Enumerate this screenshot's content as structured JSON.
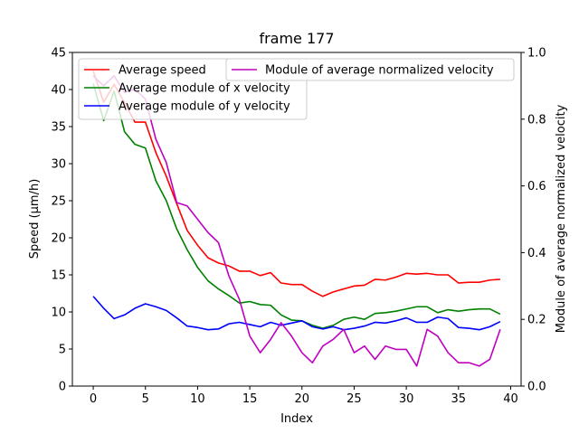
{
  "chart_data": {
    "type": "line",
    "title": "frame 177",
    "xlabel": "Index",
    "ylabel_left": "Speed (μm/h)",
    "ylabel_right": "Module of average normalized velocity",
    "xlim": [
      -2,
      41
    ],
    "ylim_left": [
      0,
      45
    ],
    "ylim_right": [
      0,
      1.0
    ],
    "xticks": [
      0,
      5,
      10,
      15,
      20,
      25,
      30,
      35,
      40
    ],
    "yticks_left": [
      0,
      5,
      10,
      15,
      20,
      25,
      30,
      35,
      40,
      45
    ],
    "yticks_right": [
      0.0,
      0.2,
      0.4,
      0.6,
      0.8,
      1.0
    ],
    "yticks_right_labels": [
      "0.0",
      "0.2",
      "0.4",
      "0.6",
      "0.8",
      "1.0"
    ],
    "grid": false,
    "x": [
      0,
      1,
      2,
      3,
      4,
      5,
      6,
      7,
      8,
      9,
      10,
      11,
      12,
      13,
      14,
      15,
      16,
      17,
      18,
      19,
      20,
      21,
      22,
      23,
      24,
      25,
      26,
      27,
      28,
      29,
      30,
      31,
      32,
      33,
      34,
      35,
      36,
      37,
      38,
      39
    ],
    "series": [
      {
        "name": "Average speed",
        "axis": "left",
        "color": "#ff0000",
        "values": [
          42.5,
          38.3,
          40.7,
          38.2,
          35.6,
          35.6,
          31.5,
          28.3,
          24.6,
          21.0,
          19.0,
          17.3,
          16.6,
          16.2,
          15.5,
          15.5,
          14.9,
          15.3,
          13.9,
          13.7,
          13.7,
          12.8,
          12.1,
          12.7,
          13.1,
          13.5,
          13.6,
          14.4,
          14.3,
          14.7,
          15.2,
          15.1,
          15.2,
          15.0,
          15.0,
          13.9,
          14.0,
          14.0,
          14.3,
          14.4
        ]
      },
      {
        "name": "Average module of x velocity",
        "axis": "left",
        "color": "#008000",
        "values": [
          40.8,
          35.8,
          39.8,
          34.3,
          32.6,
          32.1,
          27.7,
          25.0,
          21.2,
          18.4,
          16.0,
          14.2,
          13.1,
          12.2,
          11.2,
          11.4,
          11.0,
          10.9,
          9.6,
          8.9,
          8.8,
          8.2,
          7.8,
          8.2,
          9.0,
          9.3,
          9.0,
          9.8,
          9.9,
          10.1,
          10.4,
          10.7,
          10.7,
          9.9,
          10.3,
          10.1,
          10.3,
          10.4,
          10.4,
          9.7
        ]
      },
      {
        "name": "Average module of y velocity",
        "axis": "left",
        "color": "#0000ff",
        "values": [
          12.1,
          10.5,
          9.1,
          9.6,
          10.5,
          11.1,
          10.7,
          10.2,
          9.2,
          8.1,
          7.9,
          7.6,
          7.7,
          8.4,
          8.6,
          8.3,
          8.0,
          8.6,
          8.2,
          8.5,
          8.8,
          8.0,
          7.7,
          8.0,
          7.6,
          7.8,
          8.1,
          8.6,
          8.5,
          8.8,
          9.2,
          8.6,
          8.6,
          9.3,
          9.1,
          7.9,
          7.8,
          7.6,
          8.0,
          8.7
        ]
      },
      {
        "name": "Module of average normalized velocity",
        "axis": "right",
        "color": "#bf00bf",
        "values": [
          0.93,
          0.9,
          0.93,
          0.88,
          0.89,
          0.86,
          0.74,
          0.67,
          0.55,
          0.54,
          0.5,
          0.46,
          0.43,
          0.33,
          0.26,
          0.15,
          0.1,
          0.14,
          0.19,
          0.15,
          0.1,
          0.07,
          0.12,
          0.14,
          0.17,
          0.1,
          0.12,
          0.08,
          0.12,
          0.11,
          0.11,
          0.06,
          0.17,
          0.15,
          0.1,
          0.07,
          0.07,
          0.06,
          0.08,
          0.17
        ]
      }
    ],
    "legend_left": {
      "placement": "top-left",
      "entries": [
        "Average speed",
        "Average module of x velocity",
        "Average module of y velocity"
      ]
    },
    "legend_right": {
      "placement": "top-right",
      "entries": [
        "Module of average normalized velocity"
      ]
    }
  }
}
